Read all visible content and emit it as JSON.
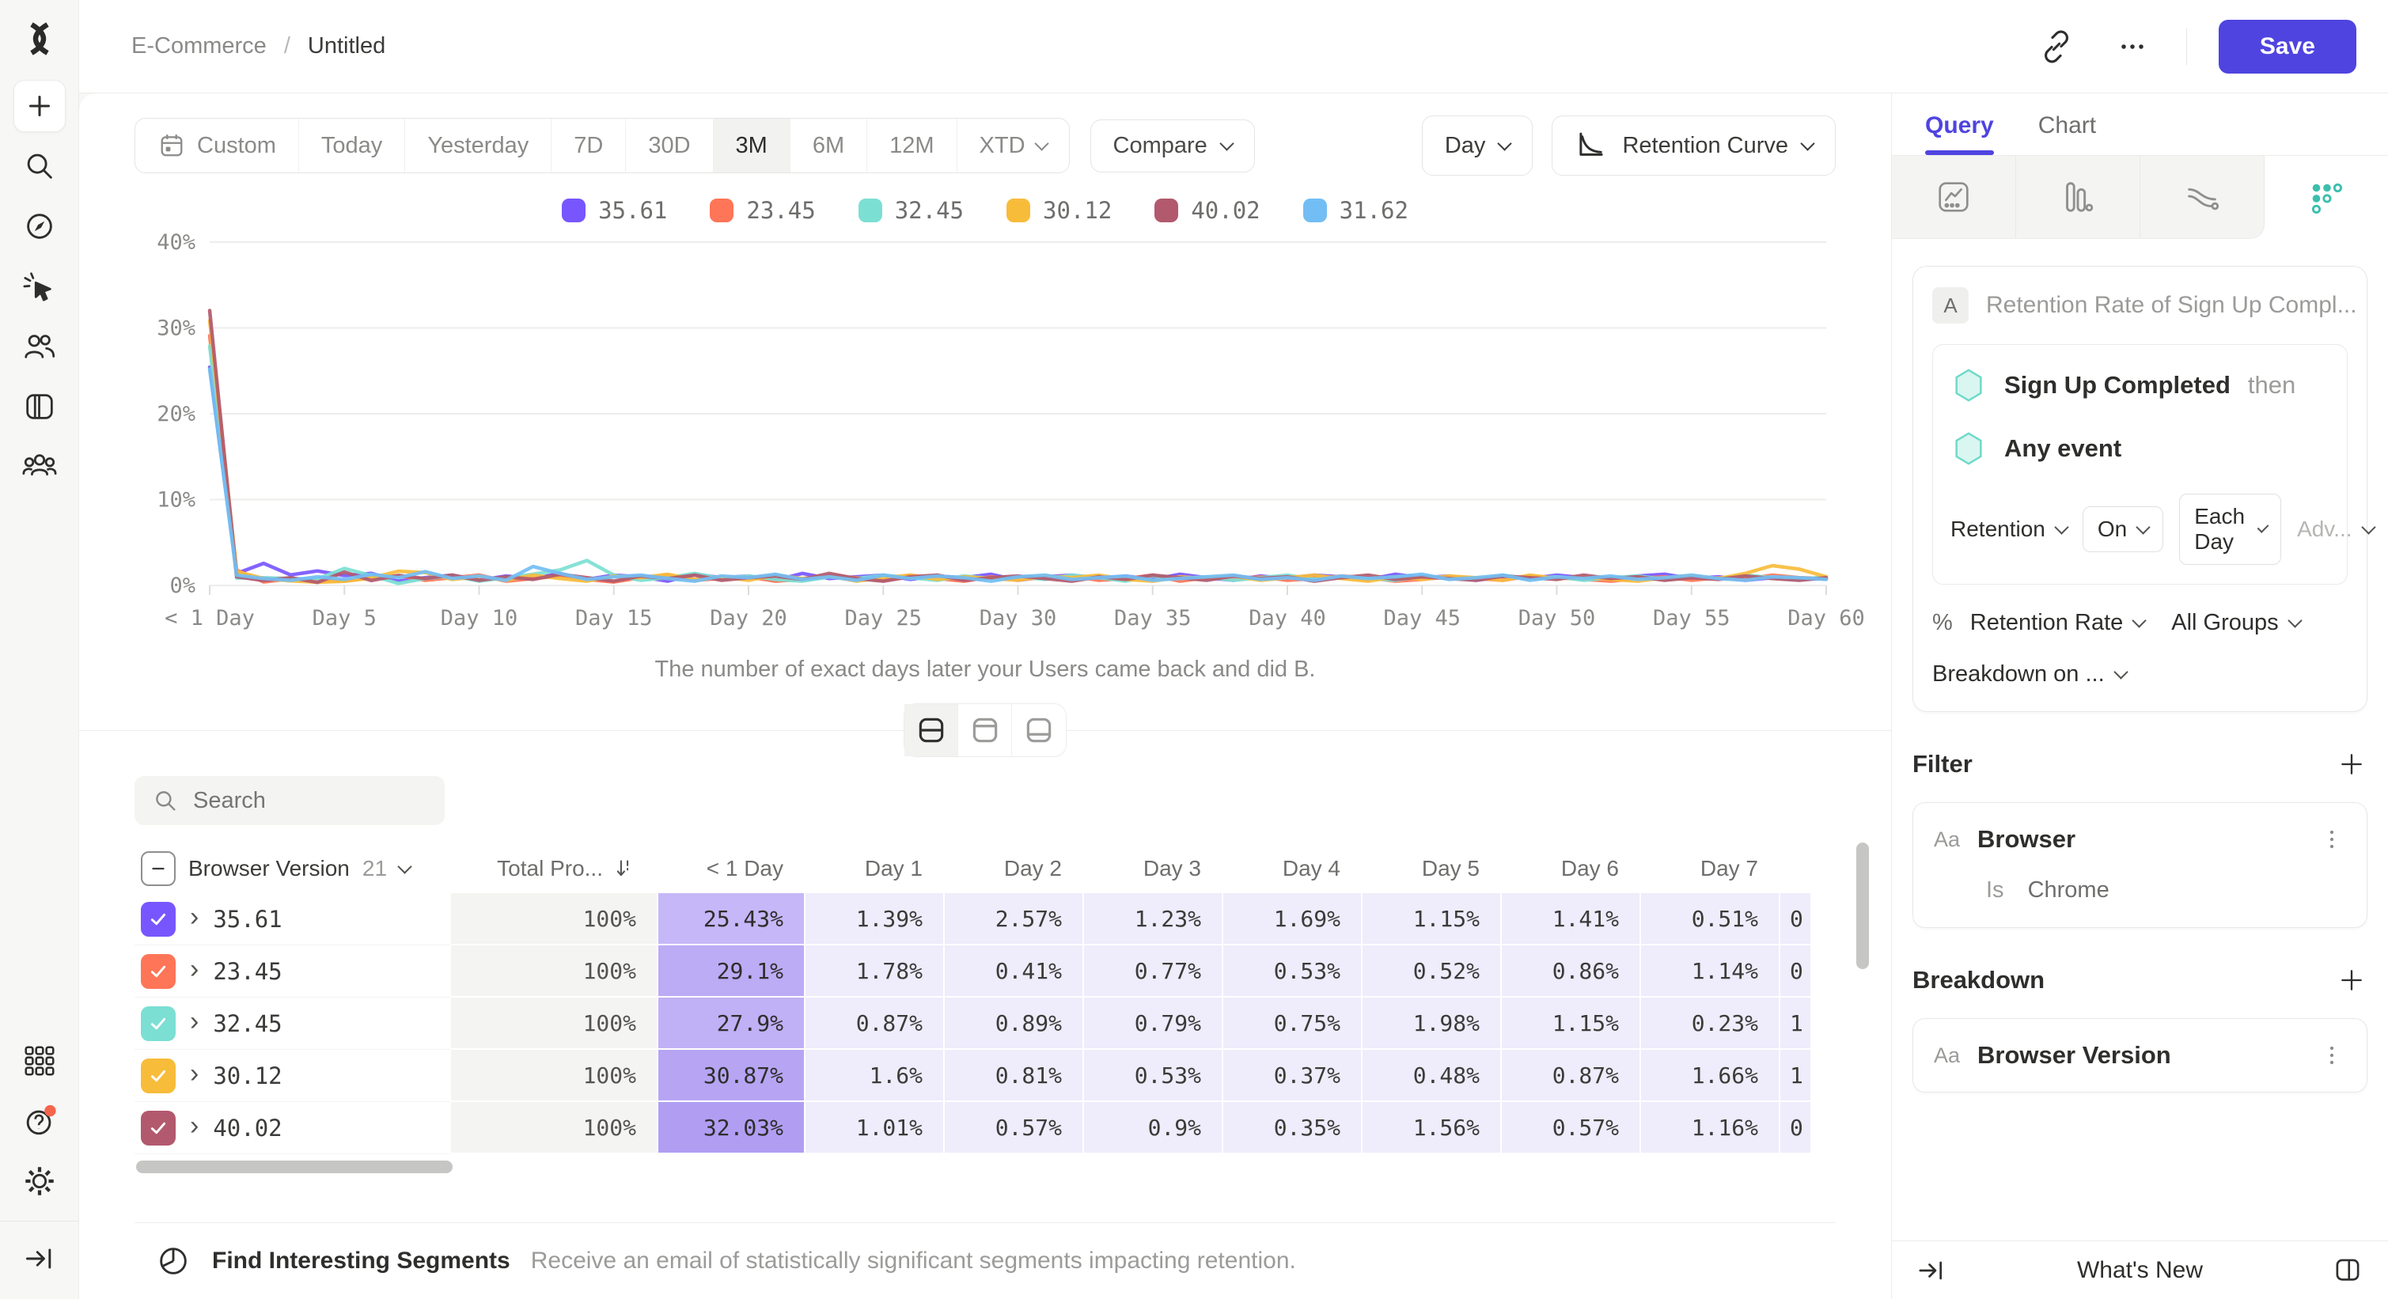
{
  "colors": {
    "accent": "#4F44E0"
  },
  "topbar": {
    "breadcrumb_parent": "E-Commerce",
    "breadcrumb_sep": "/",
    "breadcrumb_current": "Untitled",
    "save": "Save",
    "more": "•••"
  },
  "toolbar": {
    "ranges": [
      "Custom",
      "Today",
      "Yesterday",
      "7D",
      "30D",
      "3M",
      "6M",
      "12M",
      "XTD"
    ],
    "active": "3M",
    "compare": "Compare",
    "granularity": "Day",
    "chart_type": "Retention Curve"
  },
  "chart_data": {
    "type": "line",
    "title": "",
    "xlabel": "",
    "ylabel": "",
    "grid": true,
    "legend_position": "top",
    "ylim": [
      0,
      40
    ],
    "x_max": 60,
    "yticks": [
      {
        "v": 0,
        "label": "0%"
      },
      {
        "v": 10,
        "label": "10%"
      },
      {
        "v": 20,
        "label": "20%"
      },
      {
        "v": 30,
        "label": "30%"
      },
      {
        "v": 40,
        "label": "40%"
      }
    ],
    "xticks": [
      {
        "v": 0,
        "label": "< 1 Day"
      },
      {
        "v": 5,
        "label": "Day 5"
      },
      {
        "v": 10,
        "label": "Day 10"
      },
      {
        "v": 15,
        "label": "Day 15"
      },
      {
        "v": 20,
        "label": "Day 20"
      },
      {
        "v": 25,
        "label": "Day 25"
      },
      {
        "v": 30,
        "label": "Day 30"
      },
      {
        "v": 35,
        "label": "Day 35"
      },
      {
        "v": 40,
        "label": "Day 40"
      },
      {
        "v": 45,
        "label": "Day 45"
      },
      {
        "v": 50,
        "label": "Day 50"
      },
      {
        "v": 55,
        "label": "Day 55"
      },
      {
        "v": 60,
        "label": "Day 60"
      }
    ],
    "caption": "The number of exact days later your Users came back and did B.",
    "series": [
      {
        "name": "35.61",
        "color": "#7856FF",
        "values": [
          25.43,
          1.39,
          2.57,
          1.23,
          1.69,
          1.15,
          1.41,
          0.51,
          0.9,
          1.2,
          0.6,
          1.1,
          0.8,
          1.4,
          0.7,
          1.2,
          1.0,
          0.5,
          1.3,
          0.9,
          1.1,
          0.6,
          1.4,
          0.8,
          1.0,
          1.2,
          0.7,
          1.1,
          0.9,
          1.3,
          0.6,
          1.0,
          1.2,
          0.8,
          1.1,
          0.7,
          1.3,
          0.9,
          0.6,
          1.1,
          0.8,
          1.2,
          1.0,
          0.7,
          1.3,
          0.9,
          1.1,
          0.6,
          1.0,
          0.8,
          1.2,
          0.9,
          0.7,
          1.1,
          1.3,
          0.8,
          1.0,
          0.6,
          0.9,
          0.7,
          0.8
        ]
      },
      {
        "name": "23.45",
        "color": "#FF7557",
        "values": [
          29.1,
          1.78,
          0.41,
          0.77,
          0.53,
          0.52,
          0.86,
          1.14,
          0.6,
          0.9,
          1.2,
          0.5,
          0.8,
          1.1,
          0.7,
          0.4,
          0.9,
          1.2,
          0.6,
          0.8,
          1.0,
          0.5,
          0.7,
          1.1,
          0.9,
          0.6,
          1.2,
          0.8,
          0.5,
          1.0,
          0.7,
          0.9,
          1.1,
          0.6,
          0.8,
          1.2,
          0.5,
          0.9,
          0.7,
          1.0,
          0.6,
          0.8,
          1.1,
          0.9,
          0.5,
          0.7,
          1.0,
          0.8,
          0.6,
          1.1,
          0.9,
          0.7,
          0.5,
          0.8,
          1.0,
          0.6,
          0.9,
          0.7,
          1.2,
          0.9,
          0.8
        ]
      },
      {
        "name": "32.45",
        "color": "#7CDFD3",
        "values": [
          27.9,
          0.87,
          0.89,
          0.79,
          0.75,
          1.98,
          1.15,
          0.23,
          0.8,
          1.1,
          0.5,
          0.9,
          1.3,
          1.8,
          2.9,
          1.2,
          0.6,
          0.9,
          1.4,
          0.8,
          1.1,
          0.7,
          0.5,
          1.0,
          0.8,
          1.2,
          0.9,
          0.6,
          1.1,
          0.8,
          1.0,
          0.7,
          1.2,
          0.9,
          0.5,
          1.1,
          0.8,
          1.0,
          0.6,
          0.9,
          1.2,
          0.7,
          1.0,
          0.8,
          0.6,
          1.1,
          0.9,
          0.7,
          1.2,
          0.8,
          1.0,
          0.6,
          0.9,
          1.1,
          0.7,
          1.0,
          0.8,
          1.2,
          0.9,
          0.7,
          1.0
        ]
      },
      {
        "name": "30.12",
        "color": "#F8BC3B",
        "values": [
          30.87,
          1.6,
          0.81,
          0.53,
          0.37,
          0.48,
          0.87,
          1.66,
          1.5,
          0.7,
          1.0,
          0.6,
          1.2,
          0.8,
          0.5,
          1.1,
          0.9,
          1.3,
          0.7,
          1.0,
          0.6,
          1.2,
          0.8,
          1.1,
          0.5,
          0.9,
          1.2,
          0.7,
          1.0,
          0.8,
          0.6,
          1.1,
          0.9,
          1.2,
          0.7,
          0.5,
          1.0,
          0.8,
          1.1,
          0.6,
          0.9,
          1.2,
          0.8,
          0.5,
          1.0,
          0.7,
          1.1,
          0.9,
          0.6,
          1.2,
          0.8,
          1.0,
          0.7,
          0.5,
          0.9,
          1.1,
          0.8,
          1.4,
          2.3,
          1.9,
          1.0
        ]
      },
      {
        "name": "40.02",
        "color": "#B2596E",
        "values": [
          32.03,
          1.01,
          0.57,
          0.9,
          0.35,
          1.56,
          0.57,
          1.16,
          0.8,
          1.2,
          0.6,
          1.0,
          0.7,
          1.3,
          0.9,
          0.5,
          1.1,
          0.8,
          1.2,
          0.6,
          0.9,
          1.1,
          0.7,
          1.4,
          0.8,
          0.5,
          1.0,
          1.2,
          0.6,
          0.9,
          1.1,
          0.8,
          0.5,
          1.0,
          0.7,
          1.2,
          0.9,
          0.6,
          1.1,
          0.8,
          1.0,
          0.5,
          0.9,
          1.2,
          0.7,
          1.0,
          0.8,
          0.6,
          1.1,
          0.9,
          0.7,
          1.2,
          0.8,
          1.0,
          0.6,
          0.9,
          0.7,
          1.1,
          0.8,
          0.6,
          0.9
        ]
      },
      {
        "name": "31.62",
        "color": "#72BEF4",
        "values": [
          25.2,
          1.2,
          0.8,
          0.6,
          1.0,
          0.7,
          1.3,
          0.9,
          1.6,
          0.8,
          1.1,
          0.6,
          2.2,
          1.4,
          0.7,
          1.0,
          1.2,
          0.8,
          0.5,
          1.1,
          0.9,
          1.3,
          0.7,
          1.0,
          0.6,
          1.2,
          0.8,
          1.1,
          0.9,
          0.5,
          1.0,
          1.2,
          0.7,
          0.9,
          1.1,
          0.6,
          0.8,
          1.0,
          1.2,
          0.7,
          0.9,
          0.6,
          1.1,
          0.8,
          1.0,
          1.3,
          0.7,
          0.9,
          1.2,
          0.6,
          1.0,
          0.8,
          1.1,
          0.7,
          0.9,
          1.2,
          0.8,
          0.6,
          1.0,
          0.9,
          0.7
        ]
      }
    ]
  },
  "view_toggle": {
    "options": [
      "split-view",
      "chart-only-view",
      "table-only-view"
    ],
    "active": "split-view"
  },
  "search": {
    "placeholder": "Search"
  },
  "table": {
    "group": {
      "label": "Browser Version",
      "count": "21"
    },
    "columns": [
      "Total Pro...",
      "< 1 Day",
      "Day 1",
      "Day 2",
      "Day 3",
      "Day 4",
      "Day 5",
      "Day 6",
      "Day 7"
    ],
    "rows": [
      {
        "label": "35.61",
        "color": "#7856FF",
        "total": "100%",
        "first": "25.43%",
        "first_bg": "#C6B7F8",
        "days": [
          "1.39%",
          "2.57%",
          "1.23%",
          "1.69%",
          "1.15%",
          "1.41%",
          "0.51%"
        ],
        "partial": "0"
      },
      {
        "label": "23.45",
        "color": "#FF7557",
        "total": "100%",
        "first": "29.1%",
        "first_bg": "#BCABF5",
        "days": [
          "1.78%",
          "0.41%",
          "0.77%",
          "0.53%",
          "0.52%",
          "0.86%",
          "1.14%"
        ],
        "partial": "0"
      },
      {
        "label": "32.45",
        "color": "#7CDFD3",
        "total": "100%",
        "first": "27.9%",
        "first_bg": "#C0B0F6",
        "days": [
          "0.87%",
          "0.89%",
          "0.79%",
          "0.75%",
          "1.98%",
          "1.15%",
          "0.23%"
        ],
        "partial": "1"
      },
      {
        "label": "30.12",
        "color": "#F8BC3B",
        "total": "100%",
        "first": "30.87%",
        "first_bg": "#B7A5F4",
        "days": [
          "1.6%",
          "0.81%",
          "0.53%",
          "0.37%",
          "0.48%",
          "0.87%",
          "1.66%"
        ],
        "partial": "1"
      },
      {
        "label": "40.02",
        "color": "#B2596E",
        "total": "100%",
        "first": "32.03%",
        "first_bg": "#B19EF3",
        "days": [
          "1.01%",
          "0.57%",
          "0.9%",
          "0.35%",
          "1.56%",
          "0.57%",
          "1.16%"
        ],
        "partial": "0"
      }
    ]
  },
  "footer": {
    "title": "Find Interesting Segments",
    "desc": "Receive an email of statistically significant segments impacting retention."
  },
  "panel": {
    "tabs": [
      {
        "label": "Query"
      },
      {
        "label": "Chart"
      }
    ],
    "query": {
      "badge": "A",
      "title": "Retention Rate of Sign Up Compl...",
      "step1": "Sign Up Completed",
      "step1_suffix": "then",
      "step2": "Any event",
      "retention_dd": "Retention",
      "on_dd": "On",
      "each_day_dd": "Each Day",
      "advanced_dd": "Adv...",
      "percent": "%",
      "measure": "Retention Rate",
      "groups": "All Groups",
      "breakdown_on": "Breakdown on ..."
    },
    "filter": {
      "title": "Filter",
      "type": "Aa",
      "name": "Browser",
      "op": "Is",
      "value": "Chrome"
    },
    "breakdown": {
      "title": "Breakdown",
      "type": "Aa",
      "name": "Browser Version"
    },
    "whats_new": "What's New"
  }
}
